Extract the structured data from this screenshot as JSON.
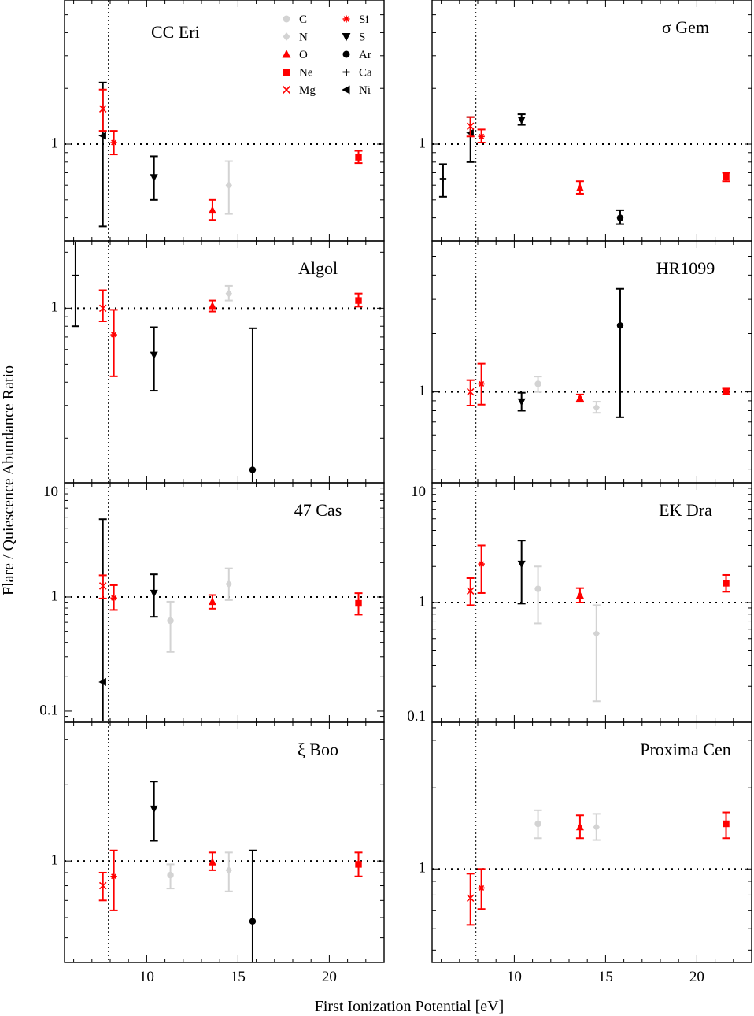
{
  "figure": {
    "xlabel": "First Ionization Potential [eV]",
    "ylabel": "Flare / Quiescence Abundance Ratio"
  },
  "legend": {
    "entries": [
      {
        "element": "C",
        "marker": "circle",
        "color": "#d3d3d3"
      },
      {
        "element": "N",
        "marker": "diamond",
        "color": "#d3d3d3"
      },
      {
        "element": "O",
        "marker": "triangle-up",
        "color": "#ff0000"
      },
      {
        "element": "Ne",
        "marker": "square",
        "color": "#ff0000"
      },
      {
        "element": "Mg",
        "marker": "x",
        "color": "#ff0000"
      },
      {
        "element": "Si",
        "marker": "asterisk",
        "color": "#ff0000"
      },
      {
        "element": "S",
        "marker": "triangle-down",
        "color": "#000000"
      },
      {
        "element": "Ar",
        "marker": "circle",
        "color": "#000000"
      },
      {
        "element": "Ca",
        "marker": "plus",
        "color": "#000000"
      },
      {
        "element": "Ni",
        "marker": "triangle-left",
        "color": "#000000"
      }
    ]
  },
  "colors": {
    "low_fip": "#ff0000",
    "high_fip": "#d3d3d3",
    "other": "#000000"
  },
  "chart_data": [
    {
      "type": "scatter",
      "title": "CC Eri",
      "log_y": true,
      "xlim": [
        5.5,
        23.0
      ],
      "ylim": [
        0.3,
        6.0
      ],
      "y_ticks": [
        {
          "value": 1,
          "label": "1"
        }
      ],
      "x_ticks": [],
      "reference_y": 1,
      "reference_x": 7.9,
      "points": [
        {
          "el": "Ni",
          "x": 7.6,
          "y": 1.11,
          "lo": 0.36,
          "hi": 2.15
        },
        {
          "el": "Mg",
          "x": 7.6,
          "y": 1.55,
          "lo": 1.18,
          "hi": 1.97
        },
        {
          "el": "Si",
          "x": 8.2,
          "y": 1.02,
          "lo": 0.88,
          "hi": 1.18
        },
        {
          "el": "S",
          "x": 10.4,
          "y": 0.66,
          "lo": 0.5,
          "hi": 0.86
        },
        {
          "el": "O",
          "x": 13.6,
          "y": 0.44,
          "lo": 0.39,
          "hi": 0.5
        },
        {
          "el": "N",
          "x": 14.5,
          "y": 0.6,
          "lo": 0.42,
          "hi": 0.81
        },
        {
          "el": "Ne",
          "x": 21.6,
          "y": 0.85,
          "lo": 0.79,
          "hi": 0.92
        }
      ]
    },
    {
      "type": "scatter",
      "title": "σ Gem",
      "log_y": true,
      "xlim": [
        5.5,
        23.0
      ],
      "ylim": [
        0.3,
        6.0
      ],
      "y_ticks": [
        {
          "value": 1,
          "label": "1"
        }
      ],
      "x_ticks": [],
      "reference_y": 1,
      "reference_x": 7.9,
      "points": [
        {
          "el": "Ca",
          "x": 6.1,
          "y": 0.65,
          "lo": 0.52,
          "hi": 0.78
        },
        {
          "el": "Ni",
          "x": 7.6,
          "y": 1.15,
          "lo": 0.8,
          "hi": 1.4
        },
        {
          "el": "Mg",
          "x": 7.6,
          "y": 1.25,
          "lo": 1.1,
          "hi": 1.4
        },
        {
          "el": "Si",
          "x": 8.2,
          "y": 1.1,
          "lo": 1.02,
          "hi": 1.2
        },
        {
          "el": "S",
          "x": 10.4,
          "y": 1.35,
          "lo": 1.27,
          "hi": 1.45
        },
        {
          "el": "O",
          "x": 13.6,
          "y": 0.58,
          "lo": 0.54,
          "hi": 0.63
        },
        {
          "el": "Ar",
          "x": 15.8,
          "y": 0.4,
          "lo": 0.37,
          "hi": 0.44
        },
        {
          "el": "Ne",
          "x": 21.6,
          "y": 0.67,
          "lo": 0.63,
          "hi": 0.7
        }
      ]
    },
    {
      "type": "scatter",
      "title": "Algol",
      "log_y": true,
      "xlim": [
        5.5,
        23.0
      ],
      "ylim": [
        0.115,
        2.3
      ],
      "y_ticks": [
        {
          "value": 1,
          "label": "1"
        }
      ],
      "x_ticks": [],
      "reference_y": 1,
      "reference_x": 7.9,
      "points": [
        {
          "el": "Ca",
          "x": 6.1,
          "y": 1.5,
          "lo": 0.8,
          "hi": 2.3
        },
        {
          "el": "Mg",
          "x": 7.6,
          "y": 1.0,
          "lo": 0.85,
          "hi": 1.25
        },
        {
          "el": "Si",
          "x": 8.2,
          "y": 0.72,
          "lo": 0.43,
          "hi": 0.98
        },
        {
          "el": "S",
          "x": 10.4,
          "y": 0.56,
          "lo": 0.36,
          "hi": 0.79
        },
        {
          "el": "O",
          "x": 13.6,
          "y": 1.03,
          "lo": 0.96,
          "hi": 1.1
        },
        {
          "el": "N",
          "x": 14.5,
          "y": 1.2,
          "lo": 1.1,
          "hi": 1.32
        },
        {
          "el": "Ar",
          "x": 15.8,
          "y": 0.135,
          "lo": 0.06,
          "hi": 0.78
        },
        {
          "el": "Ne",
          "x": 21.6,
          "y": 1.1,
          "lo": 1.02,
          "hi": 1.2
        }
      ]
    },
    {
      "type": "scatter",
      "title": "HR1099",
      "log_y": true,
      "xlim": [
        5.5,
        23.0
      ],
      "ylim": [
        0.34,
        6.0
      ],
      "y_ticks": [
        {
          "value": 1,
          "label": "1"
        }
      ],
      "x_ticks": [],
      "reference_y": 1,
      "reference_x": 7.9,
      "points": [
        {
          "el": "Mg",
          "x": 7.6,
          "y": 1.0,
          "lo": 0.85,
          "hi": 1.15
        },
        {
          "el": "Si",
          "x": 8.2,
          "y": 1.1,
          "lo": 0.86,
          "hi": 1.4
        },
        {
          "el": "S",
          "x": 10.4,
          "y": 0.89,
          "lo": 0.8,
          "hi": 0.99
        },
        {
          "el": "C",
          "x": 11.3,
          "y": 1.1,
          "lo": 1.0,
          "hi": 1.2
        },
        {
          "el": "O",
          "x": 13.6,
          "y": 0.93,
          "lo": 0.89,
          "hi": 0.97
        },
        {
          "el": "N",
          "x": 14.5,
          "y": 0.83,
          "lo": 0.78,
          "hi": 0.89
        },
        {
          "el": "Ar",
          "x": 15.8,
          "y": 2.2,
          "lo": 0.74,
          "hi": 3.4
        },
        {
          "el": "Ne",
          "x": 21.6,
          "y": 1.0,
          "lo": 0.97,
          "hi": 1.04
        }
      ]
    },
    {
      "type": "scatter",
      "title": "47 Cas",
      "log_y": true,
      "xlim": [
        5.5,
        23.0
      ],
      "ylim": [
        0.08,
        10.0
      ],
      "y_ticks": [
        {
          "value": 0.1,
          "label": "0.1"
        },
        {
          "value": 1,
          "label": "1"
        },
        {
          "value": 10,
          "label": "10"
        }
      ],
      "x_ticks": [],
      "reference_y": 1,
      "reference_x": 7.9,
      "points": [
        {
          "el": "Ni",
          "x": 7.6,
          "y": 0.18,
          "lo": 0.02,
          "hi": 4.8
        },
        {
          "el": "Mg",
          "x": 7.6,
          "y": 1.25,
          "lo": 0.97,
          "hi": 1.55
        },
        {
          "el": "Si",
          "x": 8.2,
          "y": 0.98,
          "lo": 0.77,
          "hi": 1.27
        },
        {
          "el": "S",
          "x": 10.4,
          "y": 1.08,
          "lo": 0.67,
          "hi": 1.58
        },
        {
          "el": "C",
          "x": 11.3,
          "y": 0.62,
          "lo": 0.33,
          "hi": 0.91
        },
        {
          "el": "O",
          "x": 13.6,
          "y": 0.91,
          "lo": 0.79,
          "hi": 1.04
        },
        {
          "el": "N",
          "x": 14.5,
          "y": 1.3,
          "lo": 0.94,
          "hi": 1.78
        },
        {
          "el": "Ne",
          "x": 21.6,
          "y": 0.88,
          "lo": 0.7,
          "hi": 1.08
        }
      ]
    },
    {
      "type": "scatter",
      "title": "EK Dra",
      "log_y": true,
      "xlim": [
        5.5,
        23.0
      ],
      "ylim": [
        0.1,
        10.0
      ],
      "y_ticks": [
        {
          "value": 0.1,
          "label": "0.1"
        },
        {
          "value": 1,
          "label": "1"
        },
        {
          "value": 10,
          "label": "10"
        }
      ],
      "x_ticks": [],
      "reference_y": 1,
      "reference_x": 7.9,
      "points": [
        {
          "el": "Mg",
          "x": 7.6,
          "y": 1.25,
          "lo": 0.95,
          "hi": 1.6
        },
        {
          "el": "Si",
          "x": 8.2,
          "y": 2.1,
          "lo": 1.2,
          "hi": 3.0
        },
        {
          "el": "S",
          "x": 10.4,
          "y": 2.1,
          "lo": 0.98,
          "hi": 3.3
        },
        {
          "el": "C",
          "x": 11.3,
          "y": 1.3,
          "lo": 0.67,
          "hi": 2.0
        },
        {
          "el": "O",
          "x": 13.6,
          "y": 1.15,
          "lo": 1.0,
          "hi": 1.32
        },
        {
          "el": "N",
          "x": 14.5,
          "y": 0.55,
          "lo": 0.15,
          "hi": 0.95
        },
        {
          "el": "Ne",
          "x": 21.6,
          "y": 1.45,
          "lo": 1.23,
          "hi": 1.7
        }
      ]
    },
    {
      "type": "scatter",
      "title": "ξ Boo",
      "log_y": true,
      "xlim": [
        5.5,
        23.0
      ],
      "ylim": [
        0.4,
        3.5
      ],
      "y_ticks": [
        {
          "value": 1,
          "label": "1"
        }
      ],
      "x_ticks": [
        {
          "value": 10,
          "label": "10"
        },
        {
          "value": 15,
          "label": "15"
        },
        {
          "value": 20,
          "label": "20"
        }
      ],
      "reference_y": 1,
      "reference_x": 7.9,
      "points": [
        {
          "el": "Mg",
          "x": 7.6,
          "y": 0.8,
          "lo": 0.7,
          "hi": 0.9
        },
        {
          "el": "Si",
          "x": 8.2,
          "y": 0.87,
          "lo": 0.64,
          "hi": 1.1
        },
        {
          "el": "S",
          "x": 10.4,
          "y": 1.6,
          "lo": 1.2,
          "hi": 2.05
        },
        {
          "el": "C",
          "x": 11.3,
          "y": 0.88,
          "lo": 0.78,
          "hi": 0.97
        },
        {
          "el": "O",
          "x": 13.6,
          "y": 0.99,
          "lo": 0.92,
          "hi": 1.08
        },
        {
          "el": "N",
          "x": 14.5,
          "y": 0.92,
          "lo": 0.76,
          "hi": 1.08
        },
        {
          "el": "Ar",
          "x": 15.8,
          "y": 0.58,
          "lo": 0.05,
          "hi": 1.1
        },
        {
          "el": "Ne",
          "x": 21.6,
          "y": 0.97,
          "lo": 0.87,
          "hi": 1.08
        }
      ]
    },
    {
      "type": "scatter",
      "title": "Proxima Cen",
      "log_y": true,
      "xlim": [
        5.5,
        23.0
      ],
      "ylim": [
        0.45,
        3.5
      ],
      "y_ticks": [
        {
          "value": 1,
          "label": "1"
        }
      ],
      "x_ticks": [
        {
          "value": 10,
          "label": "10"
        },
        {
          "value": 15,
          "label": "15"
        },
        {
          "value": 20,
          "label": "20"
        }
      ],
      "reference_y": 1,
      "reference_x": 7.9,
      "points": [
        {
          "el": "Mg",
          "x": 7.6,
          "y": 0.78,
          "lo": 0.62,
          "hi": 0.96
        },
        {
          "el": "Si",
          "x": 8.2,
          "y": 0.85,
          "lo": 0.71,
          "hi": 1.0
        },
        {
          "el": "C",
          "x": 11.3,
          "y": 1.47,
          "lo": 1.3,
          "hi": 1.65
        },
        {
          "el": "O",
          "x": 13.6,
          "y": 1.43,
          "lo": 1.3,
          "hi": 1.58
        },
        {
          "el": "N",
          "x": 14.5,
          "y": 1.43,
          "lo": 1.28,
          "hi": 1.6
        },
        {
          "el": "Ne",
          "x": 21.6,
          "y": 1.47,
          "lo": 1.3,
          "hi": 1.62
        }
      ]
    }
  ]
}
